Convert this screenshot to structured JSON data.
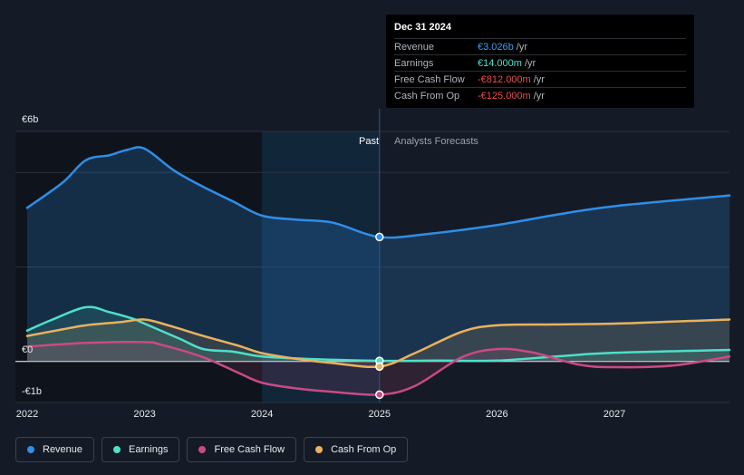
{
  "chart_data": {
    "type": "line",
    "y_axis_labels": [
      "€6b",
      "€0",
      "-€1b"
    ],
    "ylim": [
      -1.0,
      5.6
    ],
    "xlim": [
      2021.9,
      2027.98
    ],
    "x_ticks": [
      "2022",
      "2023",
      "2024",
      "2025",
      "2026",
      "2027"
    ],
    "past_label": "Past",
    "forecast_label": "Analysts Forecasts",
    "divider_x": 2025.0,
    "highlight_range": [
      2024.0,
      2025.0
    ],
    "series": [
      {
        "name": "Revenue",
        "color": "#2f8ee8",
        "fill": true,
        "points": [
          [
            2022.0,
            3.74
          ],
          [
            2022.3,
            4.35
          ],
          [
            2022.5,
            4.9
          ],
          [
            2022.7,
            5.02
          ],
          [
            2022.85,
            5.15
          ],
          [
            2023.0,
            5.18
          ],
          [
            2023.25,
            4.65
          ],
          [
            2023.5,
            4.25
          ],
          [
            2023.75,
            3.9
          ],
          [
            2024.0,
            3.55
          ],
          [
            2024.3,
            3.45
          ],
          [
            2024.6,
            3.38
          ],
          [
            2025.0,
            3.03
          ],
          [
            2025.4,
            3.1
          ],
          [
            2026.0,
            3.32
          ],
          [
            2026.5,
            3.57
          ],
          [
            2027.0,
            3.78
          ],
          [
            2027.98,
            4.04
          ]
        ]
      },
      {
        "name": "Earnings",
        "color": "#4ee0c8",
        "fill": true,
        "points": [
          [
            2022.0,
            0.75
          ],
          [
            2022.2,
            1.0
          ],
          [
            2022.5,
            1.32
          ],
          [
            2022.7,
            1.2
          ],
          [
            2022.9,
            1.04
          ],
          [
            2023.0,
            0.92
          ],
          [
            2023.3,
            0.55
          ],
          [
            2023.5,
            0.3
          ],
          [
            2023.75,
            0.24
          ],
          [
            2024.0,
            0.12
          ],
          [
            2024.4,
            0.06
          ],
          [
            2025.0,
            0.014
          ],
          [
            2025.5,
            0.02
          ],
          [
            2026.0,
            0.02
          ],
          [
            2026.5,
            0.12
          ],
          [
            2027.0,
            0.21
          ],
          [
            2027.98,
            0.28
          ]
        ]
      },
      {
        "name": "Free Cash Flow",
        "color": "#c84b85",
        "fill": true,
        "points": [
          [
            2022.0,
            0.36
          ],
          [
            2022.5,
            0.45
          ],
          [
            2023.0,
            0.47
          ],
          [
            2023.15,
            0.4
          ],
          [
            2023.5,
            0.1
          ],
          [
            2023.8,
            -0.28
          ],
          [
            2024.0,
            -0.52
          ],
          [
            2024.3,
            -0.66
          ],
          [
            2024.6,
            -0.74
          ],
          [
            2025.0,
            -0.81
          ],
          [
            2025.3,
            -0.6
          ],
          [
            2025.7,
            0.1
          ],
          [
            2026.0,
            0.3
          ],
          [
            2026.3,
            0.22
          ],
          [
            2026.7,
            -0.08
          ],
          [
            2027.0,
            -0.14
          ],
          [
            2027.5,
            -0.1
          ],
          [
            2027.98,
            0.12
          ]
        ]
      },
      {
        "name": "Cash From Op",
        "color": "#e9b25e",
        "fill": true,
        "points": [
          [
            2022.0,
            0.62
          ],
          [
            2022.3,
            0.78
          ],
          [
            2022.5,
            0.88
          ],
          [
            2022.8,
            0.96
          ],
          [
            2023.0,
            1.02
          ],
          [
            2023.2,
            0.88
          ],
          [
            2023.5,
            0.62
          ],
          [
            2023.8,
            0.38
          ],
          [
            2024.0,
            0.2
          ],
          [
            2024.3,
            0.06
          ],
          [
            2024.6,
            -0.04
          ],
          [
            2025.0,
            -0.125
          ],
          [
            2025.3,
            0.2
          ],
          [
            2025.7,
            0.72
          ],
          [
            2026.0,
            0.88
          ],
          [
            2026.5,
            0.9
          ],
          [
            2027.0,
            0.92
          ],
          [
            2027.5,
            0.97
          ],
          [
            2027.98,
            1.02
          ]
        ]
      }
    ],
    "highlight_points": [
      {
        "series": "Revenue",
        "x": 2025.0,
        "y": 3.03
      },
      {
        "series": "Earnings",
        "x": 2025.0,
        "y": 0.014
      },
      {
        "series": "Cash From Op",
        "x": 2025.0,
        "y": -0.125
      },
      {
        "series": "Free Cash Flow",
        "x": 2025.0,
        "y": -0.81
      }
    ]
  },
  "tooltip": {
    "date": "Dec 31 2024",
    "rows": [
      {
        "name": "Revenue",
        "value": "€3.026b",
        "unit": "/yr",
        "color": "#3b9cf2"
      },
      {
        "name": "Earnings",
        "value": "€14.000m",
        "unit": "/yr",
        "color": "#4ee0c8"
      },
      {
        "name": "Free Cash Flow",
        "value": "-€812.000m",
        "unit": "/yr",
        "color": "#f04b4b"
      },
      {
        "name": "Cash From Op",
        "value": "-€125.000m",
        "unit": "/yr",
        "color": "#f04b4b"
      }
    ]
  },
  "legend": [
    {
      "label": "Revenue",
      "color": "#2f8ee8"
    },
    {
      "label": "Earnings",
      "color": "#4ee0c8"
    },
    {
      "label": "Free Cash Flow",
      "color": "#c84b85"
    },
    {
      "label": "Cash From Op",
      "color": "#e9b25e"
    }
  ]
}
